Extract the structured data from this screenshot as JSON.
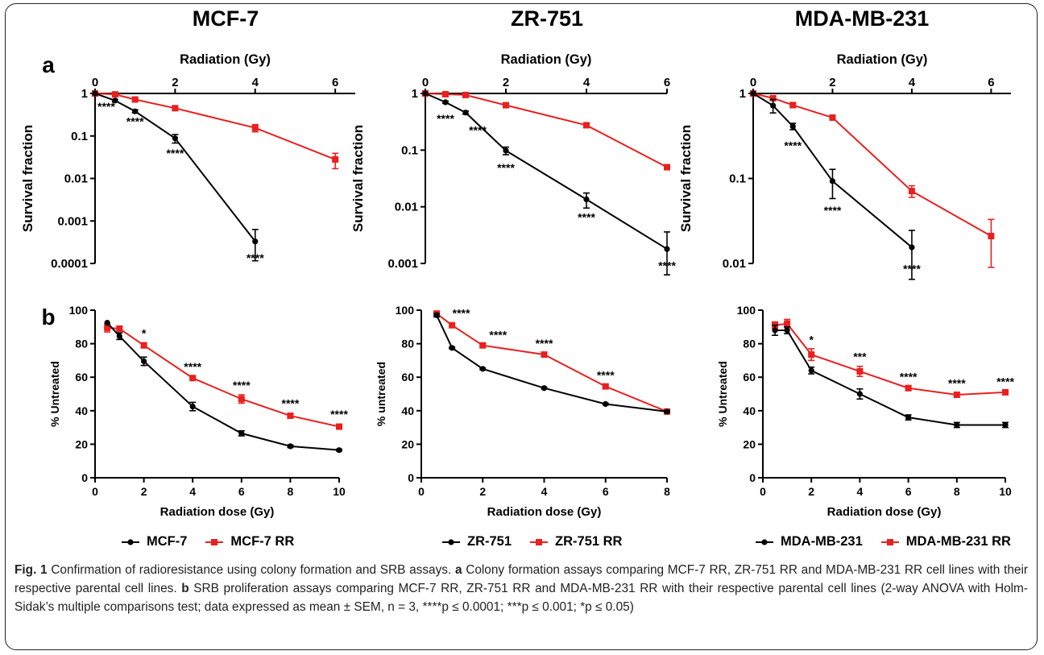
{
  "panel_labels": {
    "a": "a",
    "b": "b"
  },
  "colors": {
    "parental": "#000000",
    "rr": "#e8201f"
  },
  "star_labels": {
    "s4": "****",
    "s3": "***",
    "s1": "*"
  },
  "columns": [
    {
      "title": "MCF-7",
      "legend": [
        "MCF-7",
        "MCF-7 RR"
      ]
    },
    {
      "title": "ZR-751",
      "legend": [
        "ZR-751",
        "ZR-751 RR"
      ]
    },
    {
      "title": "MDA-MB-231",
      "legend": [
        "MDA-MB-231",
        "MDA-MB-231 RR"
      ]
    }
  ],
  "caption": {
    "fig_label": "Fig. 1",
    "title": "Confirmation of radioresistance using colony formation and SRB assays.",
    "a_label": "a",
    "a_text": "Colony formation assays comparing MCF-7 RR, ZR-751 RR and MDA-MB-231 RR cell lines with their respective parental cell lines.",
    "b_label": "b",
    "b_text": "SRB proliferation assays comparing MCF-7 RR, ZR-751 RR and MDA-MB-231 RR with their respective parental cell lines (2-way ANOVA with Holm-Sidak’s multiple comparisons test; data expressed as mean ± SEM, n = 3, ****p ≤ 0.0001; ***p ≤ 0.001; *p ≤ 0.05)"
  },
  "chart_data": [
    {
      "type": "line",
      "panel": "a",
      "column": "MCF-7",
      "xlabel": "Radiation (Gy)",
      "ylabel": "Survival fraction",
      "xaxis_position": "top",
      "xlim": [
        0,
        6.5
      ],
      "xticks": [
        0,
        2,
        4,
        6
      ],
      "ylim": [
        0.0001,
        1
      ],
      "yscale": "log",
      "yticks": [
        1,
        0.1,
        0.01,
        0.001,
        0.0001
      ],
      "ytick_labels": [
        "1",
        "0.1",
        "0.01",
        "0.001",
        "0.0001"
      ],
      "series": [
        {
          "name": "MCF-7",
          "x": [
            0,
            0.5,
            1,
            2,
            4
          ],
          "y": [
            1,
            0.68,
            0.38,
            0.088,
            0.00033
          ],
          "err": [
            0,
            0.04,
            0.03,
            0.02,
            0.0003
          ]
        },
        {
          "name": "MCF-7 RR",
          "x": [
            0,
            0.5,
            1,
            2,
            4,
            6
          ],
          "y": [
            1,
            0.95,
            0.72,
            0.45,
            0.155,
            0.028
          ],
          "err": [
            0,
            0.03,
            0.03,
            0.03,
            0.03,
            0.011
          ]
        }
      ],
      "annotations": [
        {
          "text": "****",
          "x": 0.28,
          "y": 0.4
        },
        {
          "text": "****",
          "x": 1.0,
          "y": 0.18
        },
        {
          "text": "****",
          "x": 2.0,
          "y": 0.032
        },
        {
          "text": "****",
          "x": 4.0,
          "y": 0.00011
        }
      ]
    },
    {
      "type": "line",
      "panel": "a",
      "column": "ZR-751",
      "xlabel": "Radiation (Gy)",
      "ylabel": "Survival fraction",
      "xaxis_position": "top",
      "xlim": [
        0,
        6
      ],
      "xticks": [
        0,
        2,
        4,
        6
      ],
      "ylim": [
        0.001,
        1
      ],
      "yscale": "log",
      "yticks": [
        1,
        0.1,
        0.01,
        0.001
      ],
      "ytick_labels": [
        "1",
        "0.1",
        "0.01",
        "0.001"
      ],
      "series": [
        {
          "name": "ZR-751",
          "x": [
            0,
            0.5,
            1,
            2,
            4,
            6
          ],
          "y": [
            1,
            0.7,
            0.46,
            0.098,
            0.0135,
            0.0018
          ],
          "err": [
            0,
            0.03,
            0.03,
            0.015,
            0.004,
            0.0018
          ]
        },
        {
          "name": "ZR-751 RR",
          "x": [
            0,
            0.5,
            1,
            2,
            4,
            6
          ],
          "y": [
            1,
            0.97,
            0.94,
            0.62,
            0.275,
            0.05
          ],
          "err": [
            0,
            0.03,
            0.03,
            0.03,
            0.02,
            0.005
          ]
        }
      ],
      "annotations": [
        {
          "text": "****",
          "x": 0.5,
          "y": 0.31
        },
        {
          "text": "****",
          "x": 1.3,
          "y": 0.19
        },
        {
          "text": "****",
          "x": 2.0,
          "y": 0.042
        },
        {
          "text": "****",
          "x": 4.0,
          "y": 0.0056
        },
        {
          "text": "****",
          "x": 6.0,
          "y": 0.00078
        }
      ]
    },
    {
      "type": "line",
      "panel": "a",
      "column": "MDA-MB-231",
      "xlabel": "Radiation (Gy)",
      "ylabel": "Survival fraction",
      "xaxis_position": "top",
      "xlim": [
        0,
        6.5
      ],
      "xticks": [
        0,
        2,
        4,
        6
      ],
      "ylim": [
        0.01,
        1
      ],
      "yscale": "log",
      "yticks": [
        1,
        0.1,
        0.01
      ],
      "ytick_labels": [
        "1",
        "0.1",
        "0.01"
      ],
      "series": [
        {
          "name": "MDA-MB-231",
          "x": [
            0,
            0.5,
            1,
            2,
            4
          ],
          "y": [
            1,
            0.72,
            0.41,
            0.093,
            0.0155
          ],
          "err": [
            0,
            0.13,
            0.035,
            0.035,
            0.009
          ]
        },
        {
          "name": "MDA-MB-231 RR",
          "x": [
            0,
            0.5,
            1,
            2,
            4,
            6
          ],
          "y": [
            1,
            0.88,
            0.73,
            0.52,
            0.071,
            0.021
          ],
          "err": [
            0,
            0.04,
            0.05,
            0.03,
            0.011,
            0.012
          ]
        }
      ],
      "annotations": [
        {
          "text": "****",
          "x": 1.0,
          "y": 0.22
        },
        {
          "text": "****",
          "x": 2.0,
          "y": 0.038
        },
        {
          "text": "****",
          "x": 4.0,
          "y": 0.0078
        }
      ]
    },
    {
      "type": "line",
      "panel": "b",
      "column": "MCF-7",
      "xlabel": "Radiation dose (Gy)",
      "ylabel": "% Untreated",
      "xlim": [
        0,
        10
      ],
      "xticks": [
        0,
        2,
        4,
        6,
        8,
        10
      ],
      "ylim": [
        0,
        100
      ],
      "yticks": [
        0,
        20,
        40,
        60,
        80,
        100
      ],
      "series": [
        {
          "name": "MCF-7",
          "x": [
            0.5,
            1,
            2,
            4,
            6,
            8,
            10
          ],
          "y": [
            92.5,
            84.5,
            69.5,
            42.5,
            26.5,
            18.8,
            16.5
          ],
          "err": [
            0,
            2,
            2.5,
            2.5,
            1.5,
            0.8,
            0.5
          ]
        },
        {
          "name": "MCF-7 RR",
          "x": [
            0.5,
            1,
            2,
            4,
            6,
            8,
            10
          ],
          "y": [
            89.5,
            89,
            79,
            59.5,
            47,
            37,
            30.5
          ],
          "err": [
            2.5,
            1.5,
            1.5,
            1,
            2.5,
            1,
            0.8
          ]
        }
      ],
      "annotations": [
        {
          "text": "*",
          "x": 2,
          "y": 84
        },
        {
          "text": "****",
          "x": 4,
          "y": 64
        },
        {
          "text": "****",
          "x": 6,
          "y": 53
        },
        {
          "text": "****",
          "x": 8,
          "y": 42
        },
        {
          "text": "****",
          "x": 10,
          "y": 35.5
        }
      ]
    },
    {
      "type": "line",
      "panel": "b",
      "column": "ZR-751",
      "xlabel": "Radiation dose (Gy)",
      "ylabel": "% untreated",
      "xlim": [
        0,
        8
      ],
      "xticks": [
        0,
        2,
        4,
        6,
        8
      ],
      "ylim": [
        0,
        100
      ],
      "yticks": [
        0,
        20,
        40,
        60,
        80,
        100
      ],
      "series": [
        {
          "name": "ZR-751",
          "x": [
            0.5,
            1,
            2,
            4,
            6,
            8
          ],
          "y": [
            97,
            77.5,
            65,
            53.5,
            44,
            39.5
          ],
          "err": [
            1,
            0.5,
            0.5,
            0.5,
            0.5,
            0.5
          ]
        },
        {
          "name": "ZR-751 RR",
          "x": [
            0.5,
            1,
            2,
            4,
            6,
            8
          ],
          "y": [
            98,
            91,
            79,
            73.5,
            54.5,
            39.5
          ],
          "err": [
            1,
            1,
            1,
            0.8,
            0.8,
            0.5
          ]
        }
      ],
      "annotations": [
        {
          "text": "****",
          "x": 1.3,
          "y": 96
        },
        {
          "text": "****",
          "x": 2.5,
          "y": 83
        },
        {
          "text": "****",
          "x": 4,
          "y": 78
        },
        {
          "text": "****",
          "x": 6,
          "y": 59
        }
      ]
    },
    {
      "type": "line",
      "panel": "b",
      "column": "MDA-MB-231",
      "xlabel": "Radiation dose (Gy)",
      "ylabel": "% Untreated",
      "xlim": [
        0,
        10
      ],
      "xticks": [
        0,
        2,
        4,
        6,
        8,
        10
      ],
      "ylim": [
        0,
        100
      ],
      "yticks": [
        0,
        20,
        40,
        60,
        80,
        100
      ],
      "series": [
        {
          "name": "MDA-MB-231",
          "x": [
            0.5,
            1,
            2,
            4,
            6,
            8,
            10
          ],
          "y": [
            88,
            88,
            64,
            50,
            36,
            31.5,
            31.5
          ],
          "err": [
            3,
            2,
            2,
            3,
            1.5,
            1.5,
            1.5
          ]
        },
        {
          "name": "MDA-MB-231 RR",
          "x": [
            0.5,
            1,
            2,
            4,
            6,
            8,
            10
          ],
          "y": [
            91,
            92,
            73.5,
            63.5,
            53.5,
            49.5,
            51
          ],
          "err": [
            2,
            2.5,
            3.5,
            3,
            1.5,
            1.5,
            1
          ]
        }
      ],
      "annotations": [
        {
          "text": "*",
          "x": 2,
          "y": 80
        },
        {
          "text": "***",
          "x": 4,
          "y": 70
        },
        {
          "text": "****",
          "x": 6,
          "y": 58
        },
        {
          "text": "****",
          "x": 8,
          "y": 54
        },
        {
          "text": "****",
          "x": 10,
          "y": 55
        }
      ]
    }
  ]
}
